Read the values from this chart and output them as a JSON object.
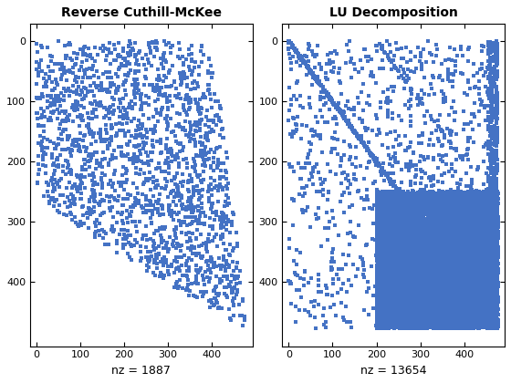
{
  "title1": "Reverse Cuthill-McKee",
  "title2": "LU Decomposition",
  "xlabel1": "nz = 1887",
  "xlabel2": "nz = 13654",
  "n": 478,
  "nz1": 1887,
  "nz2": 13654,
  "color": "#4472C4",
  "marker_size": 2.5,
  "xlim": [
    -14.34,
    492.34
  ],
  "ylim": [
    506.68,
    -28.68
  ],
  "xticks": [
    0,
    100,
    200,
    300,
    400
  ],
  "yticks": [
    0,
    100,
    200,
    300,
    400
  ],
  "title_fontsize": 10,
  "xlabel_fontsize": 9,
  "figsize": [
    5.6,
    4.2
  ],
  "dpi": 100
}
